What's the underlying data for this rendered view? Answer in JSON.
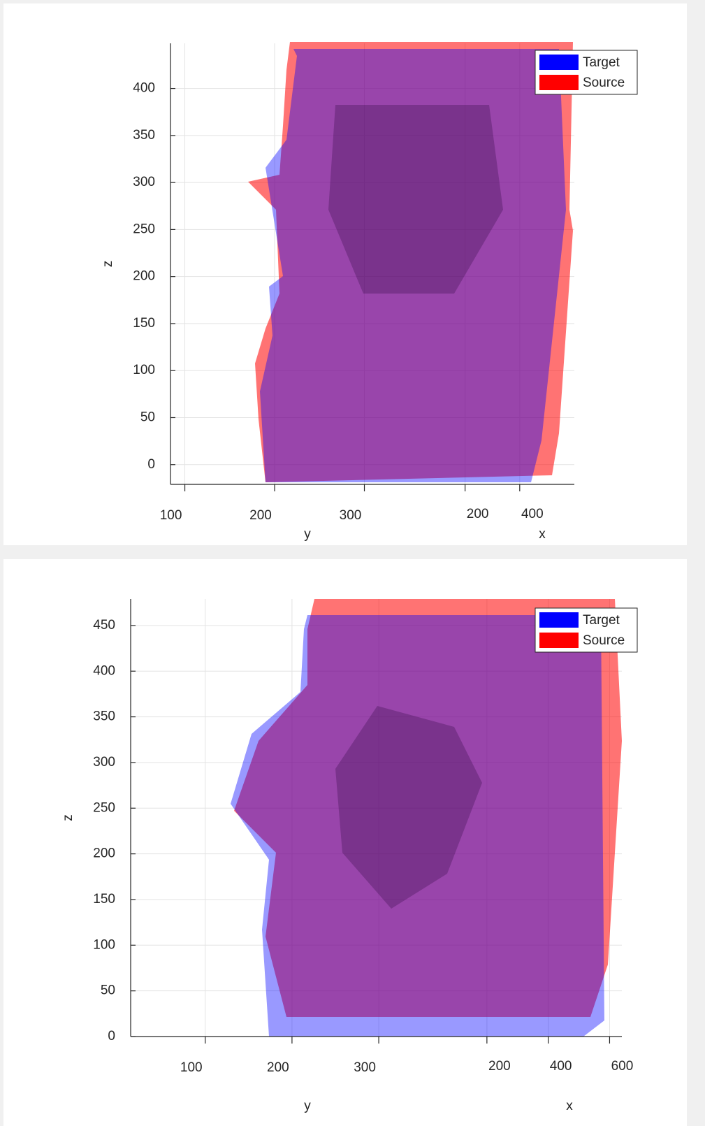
{
  "chart_data": [
    {
      "type": "surface",
      "zlabel": "z",
      "ylabel": "y",
      "xlabel": "x",
      "zlim": [
        -21,
        448
      ],
      "zticks": [
        0,
        50,
        100,
        150,
        200,
        250,
        300,
        350,
        400
      ],
      "ylim": [
        84,
        400
      ],
      "yticks": [
        100,
        200,
        300
      ],
      "xlim": [
        160,
        600
      ],
      "xticks": [
        200,
        400
      ],
      "grid": true,
      "legend": "upper right",
      "series": [
        {
          "name": "Target",
          "color": "#0000ff"
        },
        {
          "name": "Source",
          "color": "#ff0000"
        }
      ]
    },
    {
      "type": "surface",
      "zlabel": "z",
      "ylabel": "y",
      "xlabel": "x",
      "zlim": [
        0,
        479
      ],
      "zticks": [
        0,
        50,
        100,
        150,
        200,
        250,
        300,
        350,
        400,
        450
      ],
      "ylim": [
        14,
        395
      ],
      "yticks": [
        100,
        200,
        300
      ],
      "xlim": [
        116,
        640
      ],
      "xticks": [
        200,
        400,
        600
      ],
      "grid": true,
      "legend": "upper right",
      "series": [
        {
          "name": "Target",
          "color": "#0000ff"
        },
        {
          "name": "Source",
          "color": "#ff0000"
        }
      ]
    }
  ]
}
